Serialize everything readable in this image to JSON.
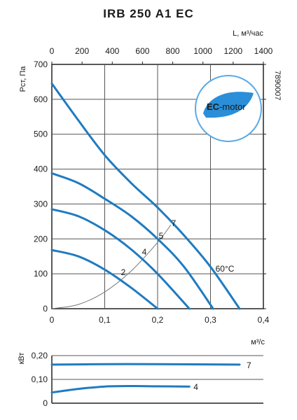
{
  "chart_data": [
    {
      "type": "line",
      "title": "IRB 250 A1 EC",
      "code": "7890007",
      "badge": "EC-motor",
      "badge_prefix": "EC",
      "badge_suffix": "-motor",
      "ylabel": "Pст, Па",
      "xlabel": "м³/с",
      "x2label": "L, м³/час",
      "xlim": [
        0,
        0.4
      ],
      "ylim": [
        0,
        700
      ],
      "x2lim": [
        0,
        1400
      ],
      "x_ticks": [
        "0",
        "0,1",
        "0,2",
        "0,3",
        "0,4"
      ],
      "y_ticks": [
        "0",
        "100",
        "200",
        "300",
        "400",
        "500",
        "600",
        "700"
      ],
      "x2_ticks": [
        "0",
        "200",
        "400",
        "600",
        "800",
        "1000",
        "1200",
        "1400"
      ],
      "grid": true,
      "colors": {
        "curve": "#1f7bc0",
        "system": "#777777",
        "accent": "#2a8fd8"
      },
      "series": [
        {
          "name": "2",
          "x": [
            0,
            0.05,
            0.1,
            0.15,
            0.2
          ],
          "y": [
            168,
            150,
            112,
            60,
            0
          ]
        },
        {
          "name": "4",
          "x": [
            0,
            0.05,
            0.1,
            0.15,
            0.2,
            0.26
          ],
          "y": [
            285,
            265,
            225,
            170,
            100,
            0
          ]
        },
        {
          "name": "5",
          "x": [
            0,
            0.05,
            0.1,
            0.15,
            0.2,
            0.25,
            0.305
          ],
          "y": [
            388,
            360,
            315,
            265,
            200,
            120,
            0
          ]
        },
        {
          "name": "7",
          "x": [
            0,
            0.05,
            0.1,
            0.15,
            0.2,
            0.25,
            0.3,
            0.355
          ],
          "y": [
            645,
            540,
            440,
            360,
            290,
            210,
            120,
            0
          ]
        }
      ],
      "system_curve": {
        "x": [
          0,
          0.05,
          0.1,
          0.15,
          0.2,
          0.225
        ],
        "y": [
          0,
          12,
          48,
          108,
          190,
          240
        ]
      },
      "annotations": [
        "2",
        "4",
        "5",
        "7",
        "60°C"
      ]
    },
    {
      "type": "line",
      "ylabel": "кВт",
      "xlabel": "",
      "xlim": [
        0,
        0.4
      ],
      "ylim": [
        0,
        0.2
      ],
      "y_ticks": [
        "0",
        "0,10",
        "0,20"
      ],
      "grid": true,
      "series": [
        {
          "name": "7",
          "x": [
            0,
            0.1,
            0.2,
            0.3,
            0.355
          ],
          "y": [
            0.162,
            0.164,
            0.164,
            0.163,
            0.162
          ]
        },
        {
          "name": "4",
          "x": [
            0,
            0.05,
            0.1,
            0.15,
            0.2,
            0.26
          ],
          "y": [
            0.045,
            0.06,
            0.07,
            0.072,
            0.071,
            0.07
          ]
        }
      ]
    }
  ]
}
